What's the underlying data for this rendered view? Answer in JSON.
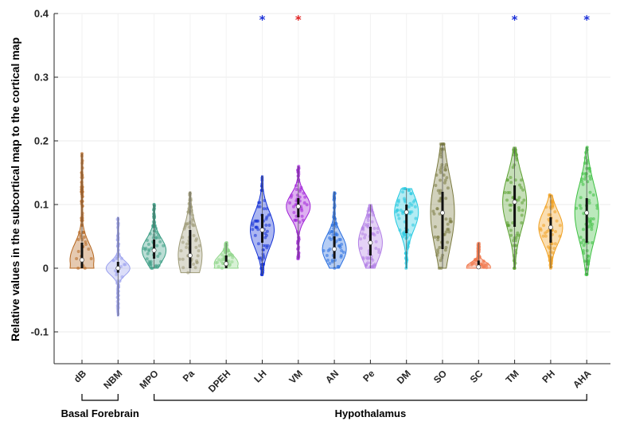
{
  "chart_data": {
    "type": "violin",
    "title": "",
    "xlabel": "",
    "ylabel": "Relative values in the subcortical map to the cortical map",
    "ylim": [
      -0.15,
      0.4
    ],
    "yticks": [
      -0.1,
      0,
      0.1,
      0.2,
      0.3,
      0.4
    ],
    "ytick_labels": [
      "-0.1",
      "0",
      "0.1",
      "0.2",
      "0.3",
      "0.4"
    ],
    "grid": true,
    "categories": [
      "dB",
      "NBM",
      "MPO",
      "Pa",
      "DPEH",
      "LH",
      "VM",
      "AN",
      "Pe",
      "DM",
      "SO",
      "SC",
      "TM",
      "PH",
      "AHA"
    ],
    "series": [
      {
        "category": "dB",
        "color": "#b5651d",
        "min": 0.0,
        "q1": 0.0,
        "median": 0.013,
        "q3": 0.04,
        "max": 0.18
      },
      {
        "category": "NBM",
        "color": "#9aa0ee",
        "min": -0.075,
        "q1": -0.007,
        "median": 0.0,
        "q3": 0.01,
        "max": 0.08
      },
      {
        "category": "MPO",
        "color": "#3a9d83",
        "min": 0.0,
        "q1": 0.015,
        "median": 0.028,
        "q3": 0.045,
        "max": 0.1
      },
      {
        "category": "Pa",
        "color": "#9e9b78",
        "min": -0.007,
        "q1": 0.0,
        "median": 0.02,
        "q3": 0.06,
        "max": 0.12
      },
      {
        "category": "DPEH",
        "color": "#8fd68a",
        "min": 0.0,
        "q1": 0.0,
        "median": 0.007,
        "q3": 0.02,
        "max": 0.04
      },
      {
        "category": "LH",
        "color": "#1230d6",
        "min": -0.01,
        "q1": 0.04,
        "median": 0.06,
        "q3": 0.085,
        "max": 0.145
      },
      {
        "category": "VM",
        "color": "#a020d8",
        "min": 0.015,
        "q1": 0.08,
        "median": 0.097,
        "q3": 0.11,
        "max": 0.16
      },
      {
        "category": "AN",
        "color": "#2a6fe0",
        "min": 0.0,
        "q1": 0.015,
        "median": 0.03,
        "q3": 0.05,
        "max": 0.12
      },
      {
        "category": "Pe",
        "color": "#b27fe6",
        "min": 0.0,
        "q1": 0.02,
        "median": 0.04,
        "q3": 0.065,
        "max": 0.1
      },
      {
        "category": "DM",
        "color": "#22c9e0",
        "min": 0.0,
        "q1": 0.055,
        "median": 0.088,
        "q3": 0.1,
        "max": 0.125
      },
      {
        "category": "SO",
        "color": "#7a7a40",
        "min": 0.0,
        "q1": 0.03,
        "median": 0.087,
        "q3": 0.12,
        "max": 0.195
      },
      {
        "category": "SC",
        "color": "#f07a50",
        "min": 0.0,
        "q1": 0.0,
        "median": 0.002,
        "q3": 0.012,
        "max": 0.04
      },
      {
        "category": "TM",
        "color": "#5aa030",
        "min": 0.0,
        "q1": 0.065,
        "median": 0.104,
        "q3": 0.13,
        "max": 0.19
      },
      {
        "category": "PH",
        "color": "#f0a020",
        "min": 0.0,
        "q1": 0.04,
        "median": 0.064,
        "q3": 0.08,
        "max": 0.115
      },
      {
        "category": "AHA",
        "color": "#3cc040",
        "min": -0.01,
        "q1": 0.04,
        "median": 0.087,
        "q3": 0.11,
        "max": 0.19
      }
    ],
    "significance": [
      {
        "category": "LH",
        "value": 0.39,
        "color": "#1a2fd8",
        "label": "*"
      },
      {
        "category": "VM",
        "value": 0.39,
        "color": "#e02020",
        "label": "*"
      },
      {
        "category": "TM",
        "value": 0.39,
        "color": "#1a2fd8",
        "label": "*"
      },
      {
        "category": "AHA",
        "value": 0.39,
        "color": "#1a2fd8",
        "label": "*"
      }
    ],
    "groups": [
      {
        "label": "Basal Forebrain",
        "from": "dB",
        "to": "NBM"
      },
      {
        "label": "Hypothalamus",
        "from": "MPO",
        "to": "AHA"
      }
    ]
  }
}
